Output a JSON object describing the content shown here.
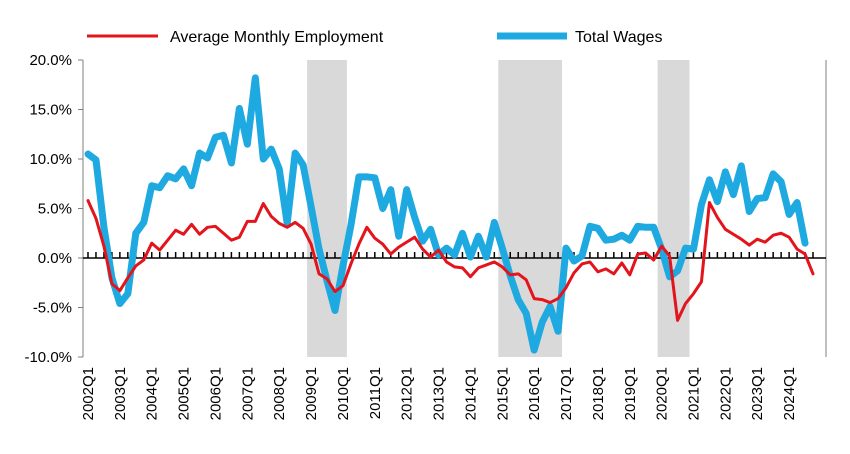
{
  "chart_data": {
    "type": "line",
    "title": "",
    "xlabel": "",
    "ylabel": "",
    "ylim": [
      -10,
      20
    ],
    "yticks": [
      {
        "value": 20,
        "label": "20.0%"
      },
      {
        "value": 15,
        "label": "15.0%"
      },
      {
        "value": 10,
        "label": "10.0%"
      },
      {
        "value": 5,
        "label": "5.0%"
      },
      {
        "value": 0,
        "label": "0.0%"
      },
      {
        "value": -5,
        "label": "-5.0%"
      },
      {
        "value": -10,
        "label": "-10.0%"
      }
    ],
    "xticks": [
      "2002Q1",
      "2003Q1",
      "2004Q1",
      "2005Q1",
      "2006Q1",
      "2007Q1",
      "2008Q1",
      "2009Q1",
      "2010Q1",
      "2011Q1",
      "2012Q1",
      "2013Q1",
      "2014Q1",
      "2015Q1",
      "2016Q1",
      "2017Q1",
      "2018Q1",
      "2019Q1",
      "2020Q1",
      "2021Q1",
      "2022Q1",
      "2023Q1",
      "2024Q1"
    ],
    "start_period": "2002Q1",
    "shaded_regions": [
      {
        "start": "2009Q1",
        "end": "2010Q1"
      },
      {
        "start": "2015Q1",
        "end": "2016Q4"
      },
      {
        "start": "2020Q1",
        "end": "2020Q4"
      }
    ],
    "grid": false,
    "legend_position": "top",
    "series": [
      {
        "name": "Average Monthly Employment",
        "color": "#e3141b",
        "width": 3,
        "values": [
          5.8,
          4.0,
          1.2,
          -2.6,
          -3.3,
          -2.0,
          -0.8,
          -0.2,
          1.5,
          0.8,
          1.8,
          2.8,
          2.4,
          3.4,
          2.4,
          3.1,
          3.2,
          2.5,
          1.8,
          2.1,
          3.7,
          3.7,
          5.5,
          4.2,
          3.5,
          3.1,
          3.6,
          3.0,
          1.4,
          -1.6,
          -2.1,
          -3.4,
          -2.8,
          -0.6,
          1.4,
          3.1,
          2.0,
          1.4,
          0.4,
          1.1,
          1.6,
          2.1,
          0.9,
          0.1,
          0.8,
          -0.4,
          -0.9,
          -1.0,
          -1.9,
          -1.0,
          -0.7,
          -0.4,
          -0.9,
          -1.7,
          -1.6,
          -2.2,
          -4.1,
          -4.2,
          -4.5,
          -4.1,
          -3.0,
          -1.5,
          -0.6,
          -0.4,
          -1.4,
          -1.1,
          -1.6,
          -0.5,
          -1.7,
          0.4,
          0.5,
          -0.2,
          1.2,
          0.2,
          -6.3,
          -4.6,
          -3.6,
          -2.4,
          5.6,
          4.1,
          2.9,
          2.4,
          1.9,
          1.3,
          1.9,
          1.6,
          2.3,
          2.5,
          2.1,
          0.9,
          0.4,
          -1.6
        ]
      },
      {
        "name": "Total Wages",
        "color": "#1fa9e1",
        "width": 7,
        "values": [
          10.5,
          9.9,
          3.1,
          -2.0,
          -4.6,
          -3.6,
          2.5,
          3.6,
          7.3,
          7.1,
          8.3,
          8.0,
          9.0,
          7.3,
          10.6,
          10.1,
          12.2,
          12.4,
          9.6,
          15.1,
          11.5,
          18.2,
          10.0,
          11.0,
          9.0,
          3.5,
          10.6,
          9.4,
          5.2,
          0.9,
          -2.3,
          -5.3,
          -0.8,
          3.3,
          8.2,
          8.2,
          8.1,
          5.0,
          6.9,
          2.2,
          6.9,
          4.1,
          1.7,
          2.9,
          0.3,
          1.0,
          0.3,
          2.5,
          0.1,
          2.2,
          0.1,
          3.6,
          1.0,
          -1.8,
          -4.2,
          -5.6,
          -9.3,
          -6.5,
          -4.9,
          -7.4,
          1.0,
          -0.3,
          0.2,
          3.2,
          3.0,
          1.8,
          1.9,
          2.3,
          1.8,
          3.2,
          3.1,
          3.1,
          0.9,
          -1.9,
          -1.3,
          1.0,
          0.9,
          5.4,
          7.9,
          5.7,
          8.7,
          6.4,
          9.3,
          4.7,
          6.0,
          6.1,
          8.5,
          7.7,
          4.4,
          5.6,
          1.5
        ]
      }
    ]
  }
}
